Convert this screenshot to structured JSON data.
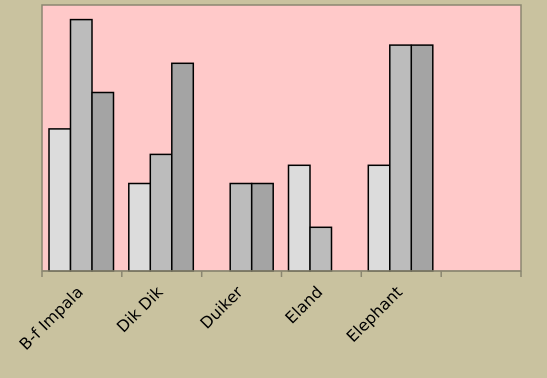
{
  "chart_data": {
    "type": "bar",
    "categories": [
      "B-f Impala",
      "Dik Dik",
      "Duiker",
      "Eland",
      "Elephant",
      ""
    ],
    "series": [
      {
        "values": [
          3.9,
          2.4,
          null,
          2.9,
          2.9,
          null
        ]
      },
      {
        "values": [
          6.9,
          3.2,
          2.4,
          1.2,
          6.2,
          null
        ]
      },
      {
        "values": [
          4.9,
          5.7,
          2.4,
          null,
          6.2,
          null
        ]
      }
    ],
    "ylim": [
      0,
      7.3
    ],
    "grid": false,
    "legend": "none",
    "colors": {
      "page_background": "#c9c29f",
      "plot_background": "#ffc9c9",
      "plot_border": "#8a8670",
      "bar_stroke": "#000000",
      "axis": "#8a8670",
      "tick_label": "#000000",
      "series": [
        "#dcdcdc",
        "#bcbcbc",
        "#a4a4a4"
      ]
    }
  }
}
